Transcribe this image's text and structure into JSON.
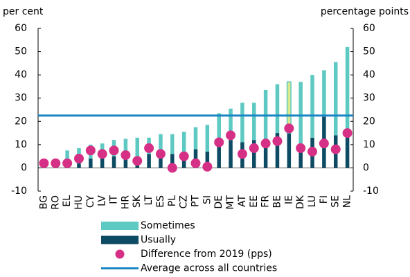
{
  "chart_data": {
    "type": "bar",
    "y_label": "per cent",
    "y2_label": "percentage points",
    "categories": [
      "BG",
      "RO",
      "EL",
      "HU",
      "CY",
      "LV",
      "IT",
      "HR",
      "SK",
      "LT",
      "ES",
      "PL",
      "CZ",
      "PT",
      "SI",
      "DE",
      "MT",
      "AT",
      "EE",
      "FR",
      "BE",
      "IE",
      "DK",
      "LU",
      "FI",
      "SE",
      "NL"
    ],
    "series": [
      {
        "name": "Sometimes",
        "type": "bar",
        "color": "#5ec9c2",
        "values": [
          0.5,
          0.5,
          5.5,
          6.5,
          6,
          6.5,
          7,
          7.5,
          11,
          7,
          9.5,
          8.5,
          11.5,
          9.5,
          11.5,
          13.5,
          13.5,
          17,
          16,
          22.5,
          21,
          22,
          30,
          27,
          20,
          31.5,
          38
        ]
      },
      {
        "name": "Usually",
        "type": "bar",
        "color": "#0d4a63",
        "values": [
          1,
          1,
          2,
          2,
          4,
          4,
          5,
          5,
          2,
          6,
          5,
          6,
          4,
          8,
          7,
          10,
          12,
          11,
          12,
          11,
          15,
          15,
          7,
          13,
          22,
          14,
          14
        ]
      },
      {
        "name": "Difference from 2019 (pps)",
        "type": "scatter",
        "axis": "y2",
        "color": "#d62f86",
        "values": [
          2,
          2,
          2,
          4,
          7.5,
          6,
          7.5,
          5.5,
          3,
          8.5,
          6,
          0,
          5,
          2,
          0.5,
          11,
          14,
          6,
          8.5,
          10.5,
          11.5,
          17,
          8.5,
          7,
          10.5,
          8,
          15
        ]
      },
      {
        "name": "Average across all countries",
        "type": "hline",
        "color": "#1a85c4",
        "value": 22.5
      }
    ],
    "highlight": {
      "category": "IE",
      "color": "#d9ea8f"
    },
    "ylim": [
      -10,
      60
    ],
    "yticks": [
      -10,
      0,
      10,
      20,
      30,
      40,
      50,
      60
    ],
    "y2lim": [
      -10,
      60
    ],
    "y2ticks": [
      -10,
      0,
      10,
      20,
      30,
      40,
      50,
      60
    ]
  }
}
